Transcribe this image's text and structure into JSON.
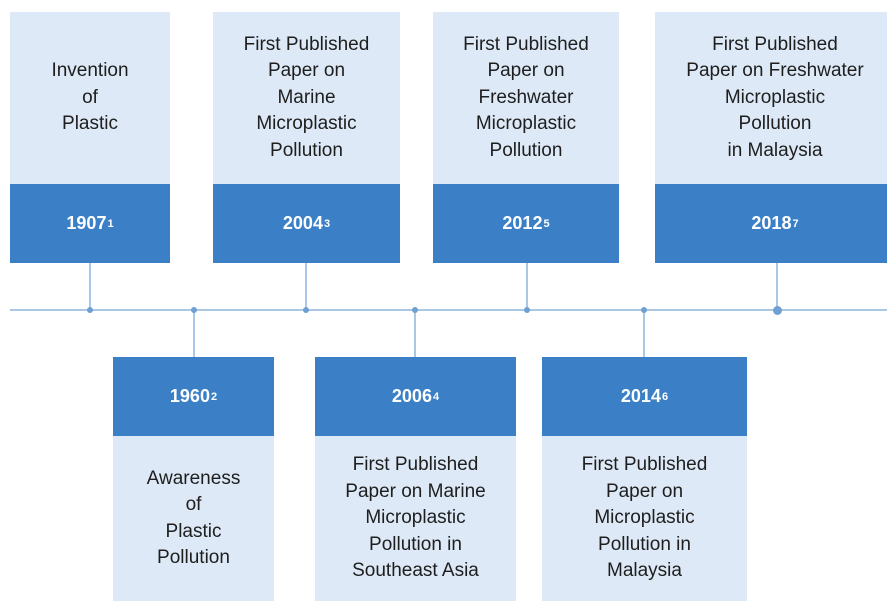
{
  "events": [
    {
      "year": "1907",
      "ref": "1",
      "lines": [
        "Invention",
        "of",
        "Plastic"
      ]
    },
    {
      "year": "1960",
      "ref": "2",
      "lines": [
        "Awareness",
        "of",
        "Plastic",
        "Pollution"
      ]
    },
    {
      "year": "2004",
      "ref": "3",
      "lines": [
        "First Published",
        "Paper on",
        "Marine",
        "Microplastic",
        "Pollution"
      ]
    },
    {
      "year": "2006",
      "ref": "4",
      "lines": [
        "First Published",
        "Paper on Marine",
        "Microplastic",
        "Pollution in",
        "Southeast Asia"
      ]
    },
    {
      "year": "2012",
      "ref": "5",
      "lines": [
        "First Published",
        "Paper on",
        "Freshwater",
        "Microplastic",
        "Pollution"
      ]
    },
    {
      "year": "2014",
      "ref": "6",
      "lines": [
        "First Published",
        "Paper on",
        "Microplastic",
        "Pollution in",
        "Malaysia"
      ]
    },
    {
      "year": "2018",
      "ref": "7",
      "lines": [
        "First Published",
        "Paper on Freshwater",
        "Microplastic",
        "Pollution",
        "in Malaysia"
      ]
    }
  ]
}
